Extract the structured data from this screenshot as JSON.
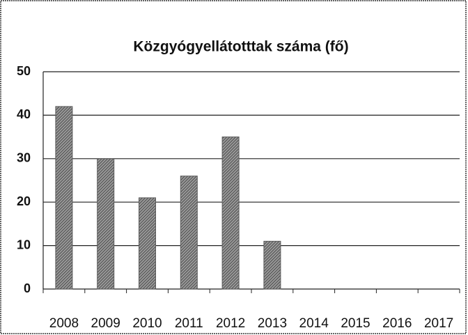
{
  "chart_data": {
    "type": "bar",
    "title": "Közgyógyellátotttak száma (fő)",
    "categories": [
      "2008",
      "2009",
      "2010",
      "2011",
      "2012",
      "2013",
      "2014",
      "2015",
      "2016",
      "2017"
    ],
    "values": [
      42,
      30,
      21,
      26,
      35,
      11,
      null,
      null,
      null,
      null
    ],
    "color": "#5a5a5a",
    "ylim": [
      0,
      50
    ],
    "yticks": [
      0,
      10,
      20,
      30,
      40,
      50
    ],
    "grid": true
  }
}
